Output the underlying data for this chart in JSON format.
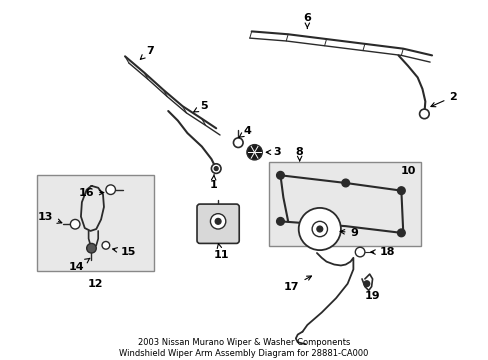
{
  "title": "2003 Nissan Murano Wiper & Washer Components\nWindshield Wiper Arm Assembly Diagram for 28881-CA000",
  "bg_color": "#ffffff",
  "line_color": "#2a2a2a",
  "label_color": "#000000",
  "font_size": 8,
  "title_font_size": 6,
  "figsize": [
    4.89,
    3.6
  ],
  "dpi": 100
}
